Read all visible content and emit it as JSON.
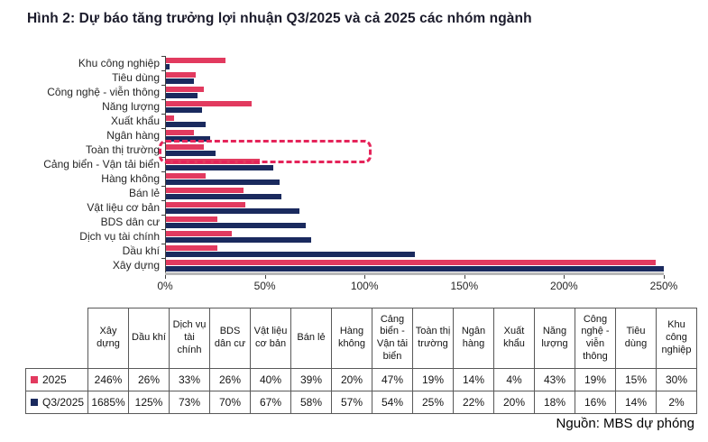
{
  "title": "Hình 2: Dự báo tăng trưởng lợi nhuận Q3/2025 và cả 2025 các nhóm ngành",
  "source": "Nguồn: MBS dự phóng",
  "colors": {
    "series_2025": "#e23a5f",
    "series_q3_2025": "#1a2a5e",
    "highlight": "#e5245a",
    "axis": "#404040",
    "baseline": "#b7b7b7"
  },
  "chart_data": {
    "type": "bar",
    "orientation": "horizontal",
    "title": "",
    "xlabel": "",
    "ylabel": "",
    "xlim": [
      0,
      250
    ],
    "x_tick_labels": [
      "0%",
      "50%",
      "100%",
      "150%",
      "200%",
      "250%"
    ],
    "grid": false,
    "legend_position": "table-left",
    "highlight_category": "Toàn thị trường",
    "categories": [
      "Khu công nghiệp",
      "Tiêu dùng",
      "Công nghệ - viễn thông",
      "Năng lượng",
      "Xuất khẩu",
      "Ngân hàng",
      "Toàn thị trường",
      "Cảng biển - Vận tải biển",
      "Hàng không",
      "Bán lẻ",
      "Vật liệu cơ bản",
      "BDS dân cư",
      "Dịch vụ tài chính",
      "Dầu khí",
      "Xây dựng"
    ],
    "series": [
      {
        "name": "2025",
        "color": "#e23a5f",
        "values": [
          30,
          15,
          19,
          43,
          4,
          14,
          19,
          47,
          20,
          39,
          40,
          26,
          33,
          26,
          246
        ]
      },
      {
        "name": "Q3/2025",
        "color": "#1a2a5e",
        "values": [
          2,
          14,
          16,
          18,
          20,
          22,
          25,
          54,
          57,
          58,
          67,
          70,
          73,
          125,
          1685
        ]
      }
    ]
  },
  "table": {
    "columns": [
      "Xây dựng",
      "Dầu khí",
      "Dịch vụ tài chính",
      "BDS dân cư",
      "Vật liệu cơ bản",
      "Bán lẻ",
      "Hàng không",
      "Cảng biển - Vận tải biển",
      "Toàn thị trường",
      "Ngân hàng",
      "Xuất khẩu",
      "Năng lượng",
      "Công nghệ - viễn thông",
      "Tiêu dùng",
      "Khu công nghiệp"
    ],
    "rows": [
      {
        "legend": "2025",
        "color": "#e23a5f",
        "values": [
          "246%",
          "26%",
          "33%",
          "26%",
          "40%",
          "39%",
          "20%",
          "47%",
          "19%",
          "14%",
          "4%",
          "43%",
          "19%",
          "15%",
          "30%"
        ]
      },
      {
        "legend": "Q3/2025",
        "color": "#1a2a5e",
        "values": [
          "1685%",
          "125%",
          "73%",
          "70%",
          "67%",
          "58%",
          "57%",
          "54%",
          "25%",
          "22%",
          "20%",
          "18%",
          "16%",
          "14%",
          "2%"
        ]
      }
    ]
  }
}
